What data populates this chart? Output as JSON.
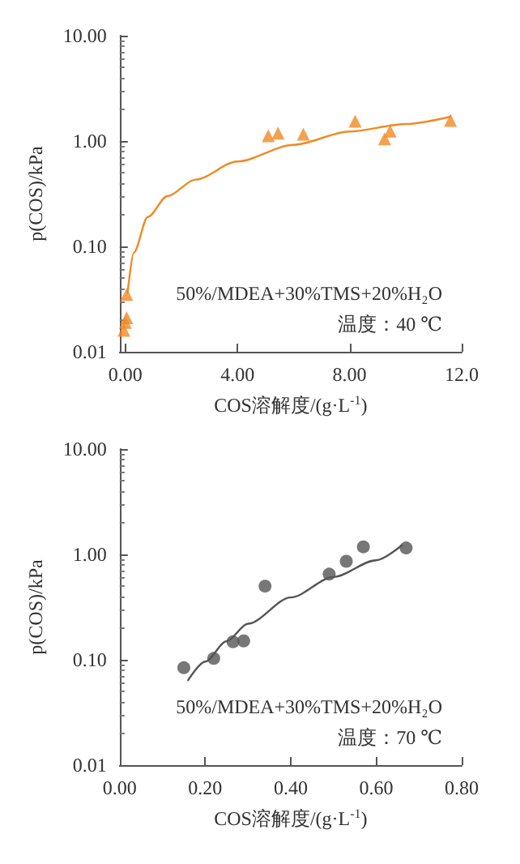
{
  "chart_data": [
    {
      "type": "scatter",
      "xlabel": "COS溶解度/(g·L$^{-1}$)",
      "ylabel": "p(COS)/kPa",
      "log": "y",
      "xlim": [
        -0.2,
        12
      ],
      "ylim": [
        0.01,
        10
      ],
      "xticks": [
        {
          "value": 0,
          "label": "0.00"
        },
        {
          "value": 4,
          "label": "4.00"
        },
        {
          "value": 8,
          "label": "8.00"
        },
        {
          "value": 12,
          "label": "12.0"
        }
      ],
      "yticks": [
        {
          "value": 0.01,
          "label": "0.01"
        },
        {
          "value": 0.1,
          "label": "0.10"
        },
        {
          "value": 1,
          "label": "1.00"
        },
        {
          "value": 10,
          "label": "10.00"
        }
      ],
      "annotations": [
        "50%/MDEA+30%TMS+20%H₂O",
        "温度：40 ℃"
      ],
      "series": [
        {
          "marker": "triangle",
          "color": "#f08a24",
          "x": [
            5.1,
            5.45,
            6.35,
            8.2,
            9.25,
            9.45,
            11.6,
            0.05,
            0.05,
            0.0,
            -0.02,
            -0.05
          ],
          "values": [
            1.12,
            1.19,
            1.16,
            1.54,
            1.05,
            1.24,
            1.57,
            0.035,
            0.021,
            0.019,
            null,
            0.016
          ]
        },
        {
          "type": "line",
          "marker": "none",
          "color": "#f08a24",
          "x": [
            0.08,
            0.3,
            0.8,
            1.5,
            2.5,
            4,
            6,
            8,
            10,
            11.6
          ],
          "values": [
            0.036,
            0.087,
            0.19,
            0.3,
            0.43,
            0.64,
            0.92,
            1.23,
            1.45,
            1.7
          ]
        }
      ]
    },
    {
      "type": "scatter",
      "xlabel": "COS溶解度/(g·L$^{-1}$)",
      "ylabel": "p(COS)/kPa",
      "log": "y",
      "xlim": [
        0,
        0.8
      ],
      "ylim": [
        0.01,
        10
      ],
      "xticks": [
        {
          "value": 0,
          "label": "0.00"
        },
        {
          "value": 0.2,
          "label": "0.20"
        },
        {
          "value": 0.4,
          "label": "0.40"
        },
        {
          "value": 0.6,
          "label": "0.60"
        },
        {
          "value": 0.8,
          "label": "0.80"
        }
      ],
      "yticks": [
        {
          "value": 0.01,
          "label": "0.01"
        },
        {
          "value": 0.1,
          "label": "0.10"
        },
        {
          "value": 1,
          "label": "1.00"
        },
        {
          "value": 10,
          "label": "10.00"
        }
      ],
      "annotations": [
        "50%/MDEA+30%TMS+20%H₂O",
        "温度：70 ℃"
      ],
      "series": [
        {
          "marker": "circle",
          "color": "#555555",
          "x": [
            0.15,
            0.22,
            0.265,
            0.29,
            0.34,
            0.49,
            0.53,
            0.57,
            0.67
          ],
          "values": [
            0.084,
            0.103,
            0.148,
            0.151,
            0.5,
            0.65,
            0.86,
            1.18,
            1.15
          ]
        },
        {
          "type": "line",
          "marker": "none",
          "color": "#555555",
          "x": [
            0.16,
            0.2,
            0.25,
            0.3,
            0.4,
            0.5,
            0.6,
            0.66
          ],
          "values": [
            0.064,
            0.096,
            0.15,
            0.22,
            0.39,
            0.61,
            0.88,
            1.22
          ]
        }
      ]
    }
  ]
}
